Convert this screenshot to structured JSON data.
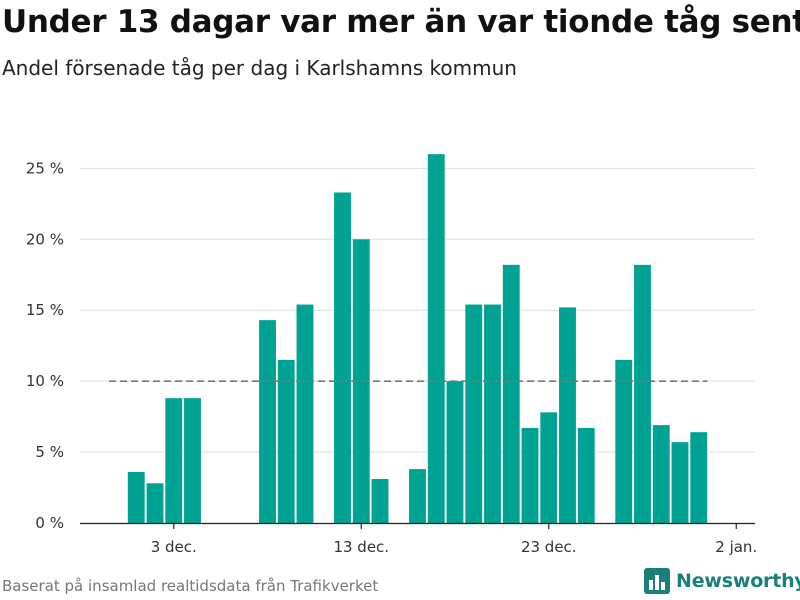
{
  "title": "Under 13 dagar var mer än var tionde tåg sent",
  "subtitle": "Andel försenade tåg per dag i Karlshamns kommun",
  "footer": "Baserat på insamlad realtidsdata från Trafikverket",
  "logo": {
    "name": "Newsworthy",
    "icon": "newsworthy-bar-chart-logo"
  },
  "colors": {
    "bar": "#00a393",
    "grid": "#dddddd",
    "axis": "#222222",
    "reference": "#777777",
    "text": "#333333",
    "brand": "#1a7f78"
  },
  "chart_data": {
    "type": "bar",
    "title": "Under 13 dagar var mer än var tionde tåg sent",
    "subtitle": "Andel försenade tåg per dag i Karlshamns kommun",
    "xlabel": "",
    "ylabel": "",
    "x_type": "date",
    "y_unit": "%",
    "ylim": [
      0,
      27
    ],
    "xlim": [
      "2018-11-28",
      "2019-01-03"
    ],
    "grid": true,
    "legend": "none",
    "yticks": [
      0,
      5,
      10,
      15,
      20,
      25
    ],
    "ytick_labels": [
      "0 %",
      "5 %",
      "10 %",
      "15 %",
      "20 %",
      "25 %"
    ],
    "xticks": [
      "2018-12-03",
      "2018-12-13",
      "2018-12-23",
      "2019-01-02"
    ],
    "xtick_labels": [
      "3 dec.",
      "13 dec.",
      "23 dec.",
      "2 jan."
    ],
    "reference_line": {
      "value": 10,
      "from": "2018-11-30",
      "to": "2018-12-31",
      "style": "dashed"
    },
    "series": [
      {
        "data": [
          {
            "x": "2018-12-01",
            "y": 3.6
          },
          {
            "x": "2018-12-02",
            "y": 2.8
          },
          {
            "x": "2018-12-03",
            "y": 8.8
          },
          {
            "x": "2018-12-04",
            "y": 8.8
          },
          {
            "x": "2018-12-08",
            "y": 14.3
          },
          {
            "x": "2018-12-09",
            "y": 11.5
          },
          {
            "x": "2018-12-10",
            "y": 15.4
          },
          {
            "x": "2018-12-12",
            "y": 23.3
          },
          {
            "x": "2018-12-13",
            "y": 20.0
          },
          {
            "x": "2018-12-14",
            "y": 3.1
          },
          {
            "x": "2018-12-16",
            "y": 3.8
          },
          {
            "x": "2018-12-17",
            "y": 26.0
          },
          {
            "x": "2018-12-18",
            "y": 10.0
          },
          {
            "x": "2018-12-19",
            "y": 15.4
          },
          {
            "x": "2018-12-20",
            "y": 15.4
          },
          {
            "x": "2018-12-21",
            "y": 18.2
          },
          {
            "x": "2018-12-22",
            "y": 6.7
          },
          {
            "x": "2018-12-23",
            "y": 7.8
          },
          {
            "x": "2018-12-24",
            "y": 15.2
          },
          {
            "x": "2018-12-25",
            "y": 6.7
          },
          {
            "x": "2018-12-27",
            "y": 11.5
          },
          {
            "x": "2018-12-28",
            "y": 18.2
          },
          {
            "x": "2018-12-29",
            "y": 6.9
          },
          {
            "x": "2018-12-30",
            "y": 5.7
          },
          {
            "x": "2018-12-31",
            "y": 6.4
          }
        ]
      }
    ]
  }
}
